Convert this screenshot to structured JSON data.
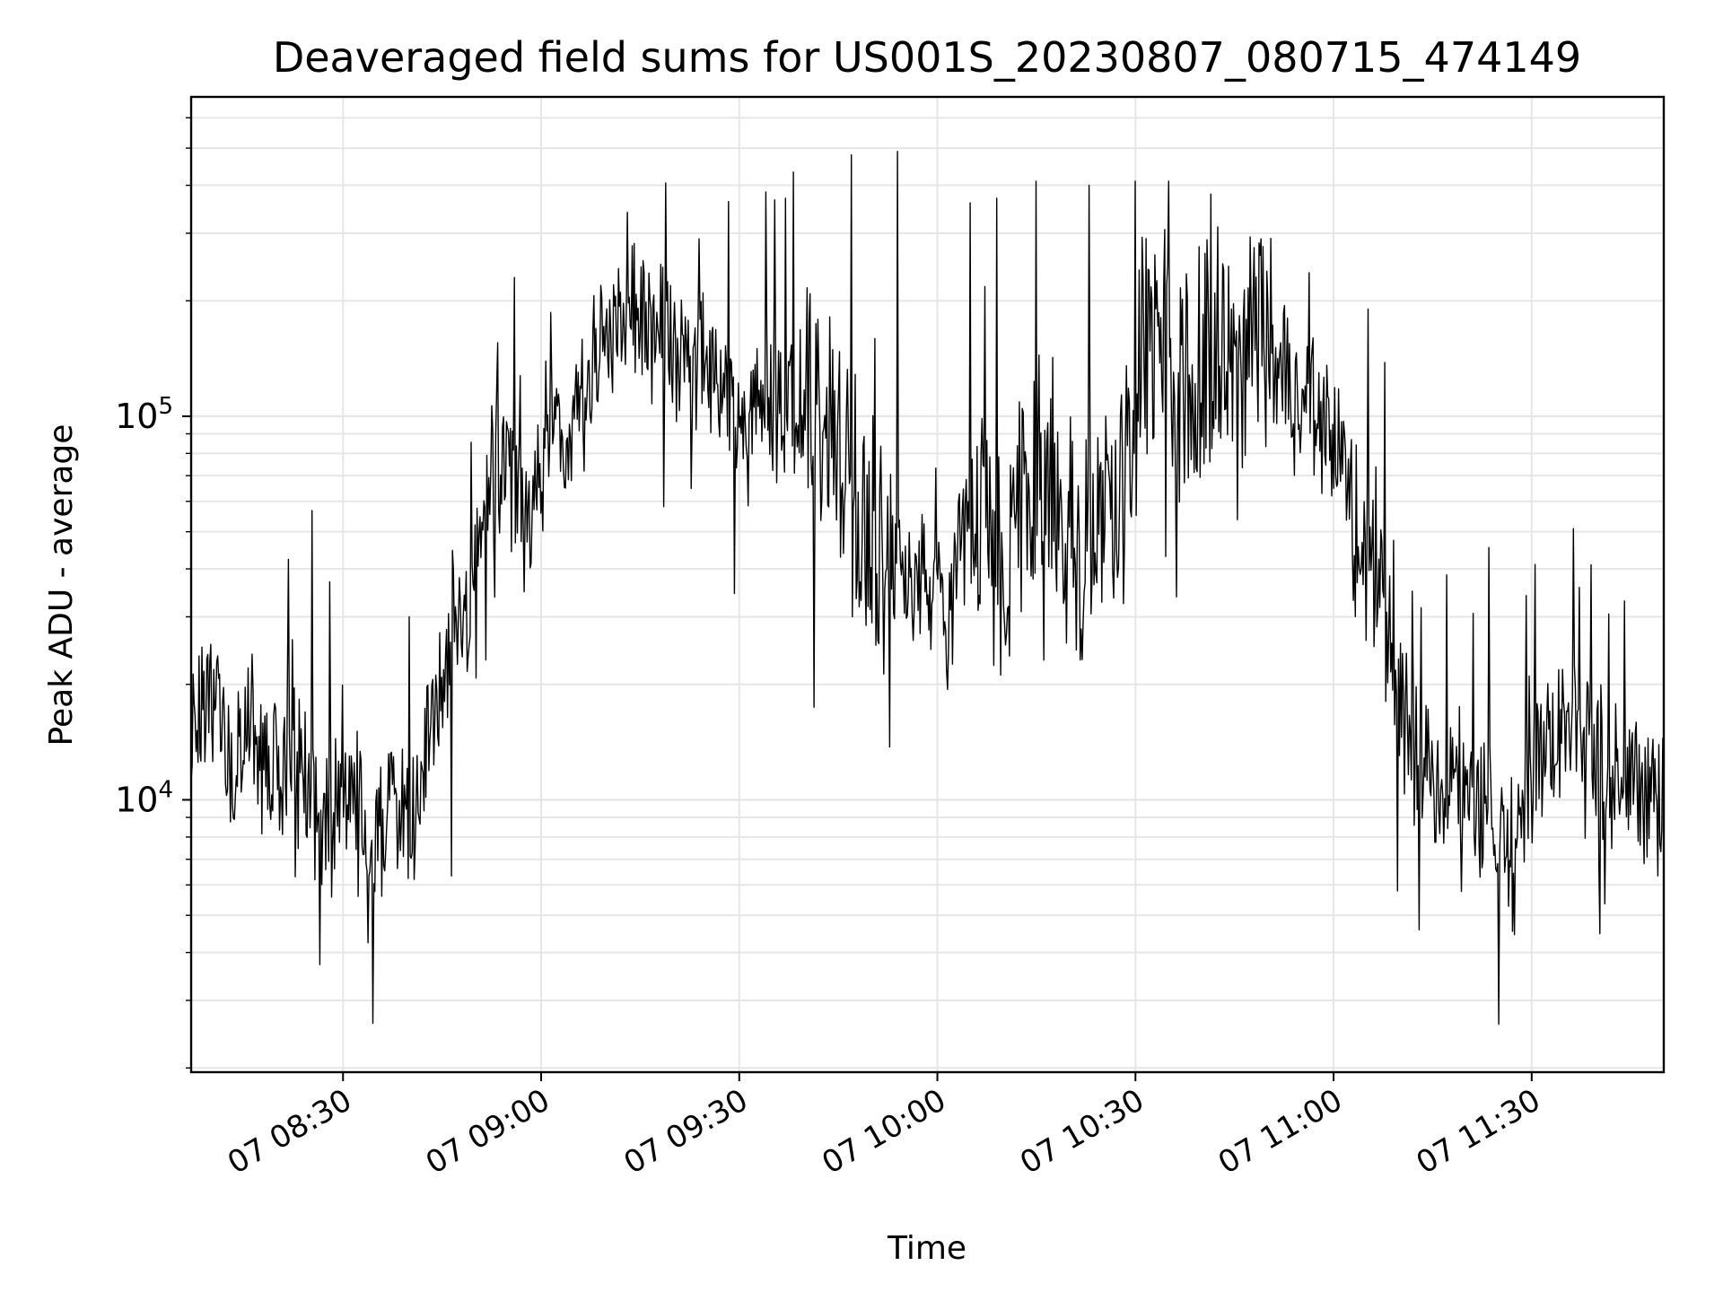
{
  "chart_data": {
    "type": "line",
    "title": "Deaveraged field sums for US001S_20230807_080715_474149",
    "xlabel": "Time",
    "ylabel": "Peak ADU - average",
    "yscale": "log",
    "grid": true,
    "line_color": "#000000",
    "grid_color": "#e6e6e6",
    "xlim": [
      "2023-08-07 08:07",
      "2023-08-07 11:50"
    ],
    "ylim": [
      1950,
      680000
    ],
    "x_ticks": [
      {
        "t": "2023-08-07 08:30",
        "label": "07 08:30"
      },
      {
        "t": "2023-08-07 09:00",
        "label": "07 09:00"
      },
      {
        "t": "2023-08-07 09:30",
        "label": "07 09:30"
      },
      {
        "t": "2023-08-07 10:00",
        "label": "07 10:00"
      },
      {
        "t": "2023-08-07 10:30",
        "label": "07 10:30"
      },
      {
        "t": "2023-08-07 11:00",
        "label": "07 11:00"
      },
      {
        "t": "2023-08-07 11:30",
        "label": "07 11:30"
      }
    ],
    "y_ticks": [
      {
        "value": 10000,
        "base": "10",
        "exp": "4"
      },
      {
        "value": 100000,
        "base": "10",
        "exp": "5"
      }
    ],
    "series": [
      {
        "x": [
          "2023-08-07 08:07",
          "2023-08-07 08:10",
          "2023-08-07 08:13",
          "2023-08-07 08:16",
          "2023-08-07 08:19",
          "2023-08-07 08:22",
          "2023-08-07 08:25",
          "2023-08-07 08:28",
          "2023-08-07 08:31",
          "2023-08-07 08:34",
          "2023-08-07 08:37",
          "2023-08-07 08:40",
          "2023-08-07 08:43",
          "2023-08-07 08:46",
          "2023-08-07 08:49",
          "2023-08-07 08:52",
          "2023-08-07 08:55",
          "2023-08-07 08:58",
          "2023-08-07 09:01",
          "2023-08-07 09:04",
          "2023-08-07 09:07",
          "2023-08-07 09:10",
          "2023-08-07 09:13",
          "2023-08-07 09:16",
          "2023-08-07 09:19",
          "2023-08-07 09:22",
          "2023-08-07 09:25",
          "2023-08-07 09:28",
          "2023-08-07 09:31",
          "2023-08-07 09:34",
          "2023-08-07 09:37",
          "2023-08-07 09:40",
          "2023-08-07 09:43",
          "2023-08-07 09:46",
          "2023-08-07 09:49",
          "2023-08-07 09:52",
          "2023-08-07 09:55",
          "2023-08-07 09:58",
          "2023-08-07 10:01",
          "2023-08-07 10:04",
          "2023-08-07 10:07",
          "2023-08-07 10:10",
          "2023-08-07 10:13",
          "2023-08-07 10:16",
          "2023-08-07 10:19",
          "2023-08-07 10:22",
          "2023-08-07 10:25",
          "2023-08-07 10:28",
          "2023-08-07 10:31",
          "2023-08-07 10:34",
          "2023-08-07 10:37",
          "2023-08-07 10:40",
          "2023-08-07 10:43",
          "2023-08-07 10:46",
          "2023-08-07 10:49",
          "2023-08-07 10:52",
          "2023-08-07 10:55",
          "2023-08-07 10:58",
          "2023-08-07 11:01",
          "2023-08-07 11:04",
          "2023-08-07 11:07",
          "2023-08-07 11:10",
          "2023-08-07 11:13",
          "2023-08-07 11:16",
          "2023-08-07 11:19",
          "2023-08-07 11:22",
          "2023-08-07 11:25",
          "2023-08-07 11:28",
          "2023-08-07 11:31",
          "2023-08-07 11:34",
          "2023-08-07 11:37",
          "2023-08-07 11:40",
          "2023-08-07 11:43",
          "2023-08-07 11:46",
          "2023-08-07 11:49"
        ],
        "y": [
          14000,
          20000,
          12000,
          17000,
          13000,
          15000,
          11000,
          9500,
          12000,
          8000,
          10000,
          9000,
          14000,
          28000,
          35000,
          60000,
          75000,
          55000,
          100000,
          85000,
          135000,
          160000,
          200000,
          180000,
          165000,
          130000,
          145000,
          120000,
          105000,
          120000,
          110000,
          115000,
          95000,
          80000,
          55000,
          45000,
          35000,
          40000,
          30000,
          45000,
          50000,
          38000,
          60000,
          70000,
          50000,
          55000,
          60000,
          70000,
          150000,
          180000,
          130000,
          140000,
          160000,
          180000,
          170000,
          150000,
          110000,
          100000,
          85000,
          55000,
          35000,
          20000,
          13000,
          11000,
          12000,
          10000,
          9500,
          8000,
          13000,
          15000,
          16000,
          14000,
          12000,
          11000,
          10000
        ],
        "spike_x": [
          "2023-08-07 08:28",
          "2023-08-07 08:40",
          "2023-08-07 08:56",
          "2023-08-07 09:13",
          "2023-08-07 09:24",
          "2023-08-07 09:37",
          "2023-08-07 09:47",
          "2023-08-07 09:54",
          "2023-08-07 10:05",
          "2023-08-07 10:09",
          "2023-08-07 10:15",
          "2023-08-07 10:23",
          "2023-08-07 10:30",
          "2023-08-07 10:35",
          "2023-08-07 10:49",
          "2023-08-07 11:12",
          "2023-08-07 11:25",
          "2023-08-07 11:39",
          "2023-08-07 11:44"
        ],
        "spike_y": [
          37000,
          30000,
          230000,
          340000,
          290000,
          370000,
          480000,
          490000,
          360000,
          370000,
          410000,
          400000,
          410000,
          410000,
          290000,
          35000,
          2600,
          41000,
          33000
        ]
      }
    ]
  }
}
